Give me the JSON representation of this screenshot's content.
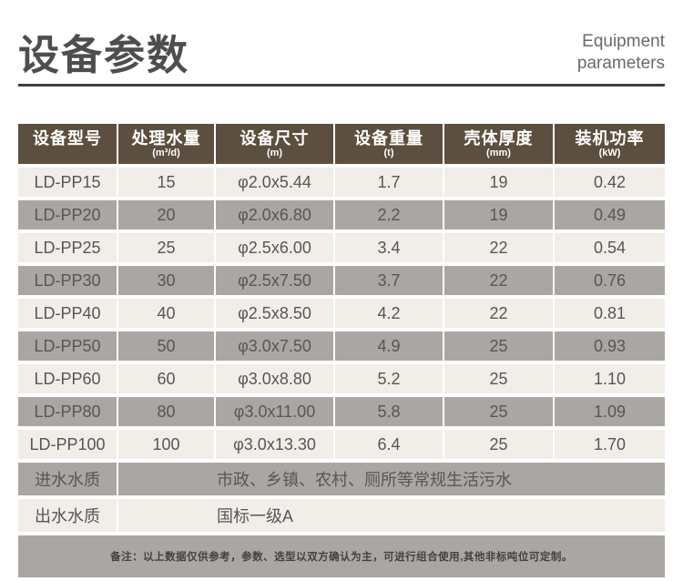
{
  "header": {
    "title_cn": "设备参数",
    "title_en_line1": "Equipment",
    "title_en_line2": "parameters"
  },
  "table": {
    "columns": [
      {
        "label": "设备型号",
        "unit": ""
      },
      {
        "label": "处理水量",
        "unit": "(m³/d)"
      },
      {
        "label": "设备尺寸",
        "unit": "(m)"
      },
      {
        "label": "设备重量",
        "unit": "(t)"
      },
      {
        "label": "壳体厚度",
        "unit": "(mm)"
      },
      {
        "label": "装机功率",
        "unit": "(kW)"
      }
    ],
    "rows": [
      [
        "LD-PP15",
        "15",
        "φ2.0x5.44",
        "1.7",
        "19",
        "0.42"
      ],
      [
        "LD-PP20",
        "20",
        "φ2.0x6.80",
        "2.2",
        "19",
        "0.49"
      ],
      [
        "LD-PP25",
        "25",
        "φ2.5x6.00",
        "3.4",
        "22",
        "0.54"
      ],
      [
        "LD-PP30",
        "30",
        "φ2.5x7.50",
        "3.7",
        "22",
        "0.76"
      ],
      [
        "LD-PP40",
        "40",
        "φ2.5x8.50",
        "4.2",
        "22",
        "0.81"
      ],
      [
        "LD-PP50",
        "50",
        "φ3.0x7.50",
        "4.9",
        "25",
        "0.93"
      ],
      [
        "LD-PP60",
        "60",
        "φ3.0x8.80",
        "5.2",
        "25",
        "1.10"
      ],
      [
        "LD-PP80",
        "80",
        "φ3.0x11.00",
        "5.8",
        "25",
        "1.09"
      ],
      [
        "LD-PP100",
        "100",
        "φ3.0x13.30",
        "6.4",
        "25",
        "1.70"
      ]
    ],
    "extra_rows": [
      {
        "label": "进水水质",
        "value": "市政、乡镇、农村、厕所等常规生活污水"
      },
      {
        "label": "出水水质",
        "value": "国标一级A"
      }
    ],
    "note": "备注：以上数据仅供参考，参数、选型以双方确认为主，可进行组合使用,其他非标吨位可定制。"
  },
  "colors": {
    "header_bg": "#5c4f40",
    "row_light": "#f1ede7",
    "row_gray": "#a9a6a3",
    "cell_text": "#56575a",
    "title": "#4e4e4e",
    "subtitle": "#6a6a6a",
    "rule": "#3e3e3e",
    "note_text": "#424242"
  }
}
